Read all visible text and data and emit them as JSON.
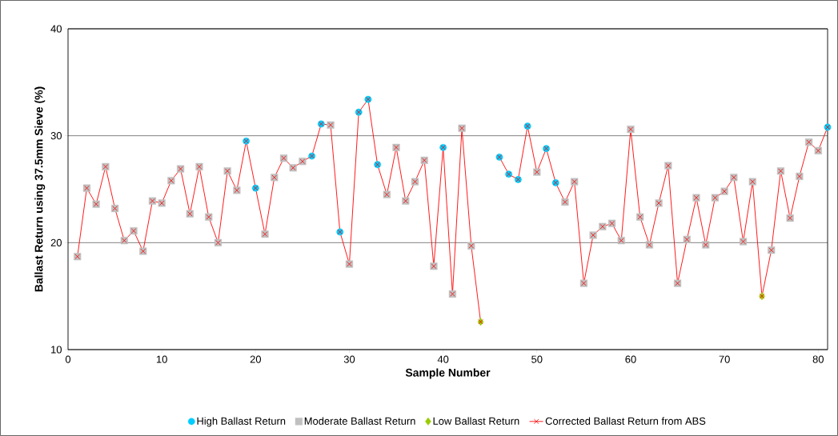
{
  "chart_data": {
    "type": "scatter",
    "xlabel": "Sample Number",
    "ylabel": "Ballast Return using 37.5mm Sieve (%)",
    "xlim": [
      0,
      81
    ],
    "xticks": [
      0,
      10,
      20,
      30,
      40,
      50,
      60,
      70,
      80
    ],
    "ylim": [
      10,
      40
    ],
    "yticks": [
      10,
      20,
      30,
      40
    ],
    "grid": "y",
    "legend": "bottom",
    "series": [
      {
        "name": "High Ballast Return",
        "marker": "circle",
        "color": "#00ccff",
        "x": [
          19,
          20,
          26,
          27,
          29,
          31,
          32,
          33,
          40,
          46,
          47,
          48,
          49,
          51,
          52,
          81
        ],
        "values": [
          29.5,
          25.1,
          28.1,
          31.1,
          21.0,
          32.2,
          33.4,
          27.3,
          28.9,
          28.0,
          26.4,
          25.9,
          30.9,
          28.8,
          25.6,
          30.8
        ]
      },
      {
        "name": "Moderate Ballast Return",
        "marker": "square",
        "color": "#c0c0c0",
        "x": [
          1,
          2,
          3,
          4,
          5,
          6,
          7,
          8,
          9,
          10,
          11,
          12,
          13,
          14,
          15,
          16,
          17,
          18,
          21,
          22,
          23,
          24,
          25,
          28,
          30,
          34,
          35,
          36,
          37,
          38,
          39,
          41,
          42,
          43,
          50,
          53,
          54,
          55,
          56,
          57,
          58,
          59,
          60,
          61,
          62,
          63,
          64,
          65,
          66,
          67,
          68,
          69,
          70,
          71,
          72,
          73,
          75,
          76,
          77,
          78,
          79,
          80
        ],
        "values": [
          18.7,
          25.1,
          23.6,
          27.1,
          23.2,
          20.2,
          21.1,
          19.2,
          23.9,
          23.7,
          25.8,
          26.9,
          22.7,
          27.1,
          22.4,
          20.0,
          26.7,
          24.9,
          20.8,
          26.1,
          27.9,
          27.0,
          27.6,
          31.0,
          18.0,
          24.5,
          28.9,
          23.9,
          25.7,
          27.7,
          17.8,
          15.2,
          30.7,
          19.7,
          26.6,
          23.8,
          25.7,
          16.2,
          20.7,
          21.5,
          21.8,
          20.2,
          30.6,
          22.4,
          19.8,
          23.7,
          27.2,
          16.2,
          20.3,
          24.2,
          19.8,
          24.2,
          24.8,
          26.1,
          20.1,
          25.7,
          19.3,
          26.7,
          22.3,
          26.2,
          29.4,
          28.6
        ]
      },
      {
        "name": "Low Ballast Return",
        "marker": "diamond",
        "color": "#99cc00",
        "x": [
          44,
          74
        ],
        "values": [
          12.6,
          15.0
        ]
      },
      {
        "name": "Corrected Ballast Return from ABS",
        "type": "line",
        "marker": "cross",
        "color": "#ff0000",
        "x": [
          1,
          2,
          3,
          4,
          5,
          6,
          7,
          8,
          9,
          10,
          11,
          12,
          13,
          14,
          15,
          16,
          17,
          18,
          19,
          20,
          21,
          22,
          23,
          24,
          25,
          26,
          27,
          28,
          29,
          30,
          31,
          32,
          33,
          34,
          35,
          36,
          37,
          38,
          39,
          40,
          41,
          42,
          43,
          44,
          45,
          46,
          47,
          48,
          49,
          50,
          51,
          52,
          53,
          54,
          55,
          56,
          57,
          58,
          59,
          60,
          61,
          62,
          63,
          64,
          65,
          66,
          67,
          68,
          69,
          70,
          71,
          72,
          73,
          74,
          75,
          76,
          77,
          78,
          79,
          80,
          81
        ],
        "values": [
          18.7,
          25.1,
          23.6,
          27.1,
          23.2,
          20.2,
          21.1,
          19.2,
          23.9,
          23.7,
          25.8,
          26.9,
          22.7,
          27.1,
          22.4,
          20.0,
          26.7,
          24.9,
          29.5,
          25.1,
          20.8,
          26.1,
          27.9,
          27.0,
          27.6,
          28.1,
          31.1,
          31.0,
          21.0,
          18.0,
          32.2,
          33.4,
          27.3,
          24.5,
          28.9,
          23.9,
          25.7,
          27.7,
          17.8,
          28.9,
          15.2,
          30.7,
          19.7,
          12.6,
          null,
          28.0,
          26.4,
          25.9,
          30.9,
          26.6,
          28.8,
          25.6,
          23.8,
          25.7,
          16.2,
          20.7,
          21.5,
          21.8,
          20.2,
          30.6,
          22.4,
          19.8,
          23.7,
          27.2,
          16.2,
          20.3,
          24.2,
          19.8,
          24.2,
          24.8,
          26.1,
          20.1,
          25.7,
          15.0,
          19.3,
          26.7,
          22.3,
          26.2,
          29.4,
          28.6,
          30.8
        ]
      }
    ]
  }
}
